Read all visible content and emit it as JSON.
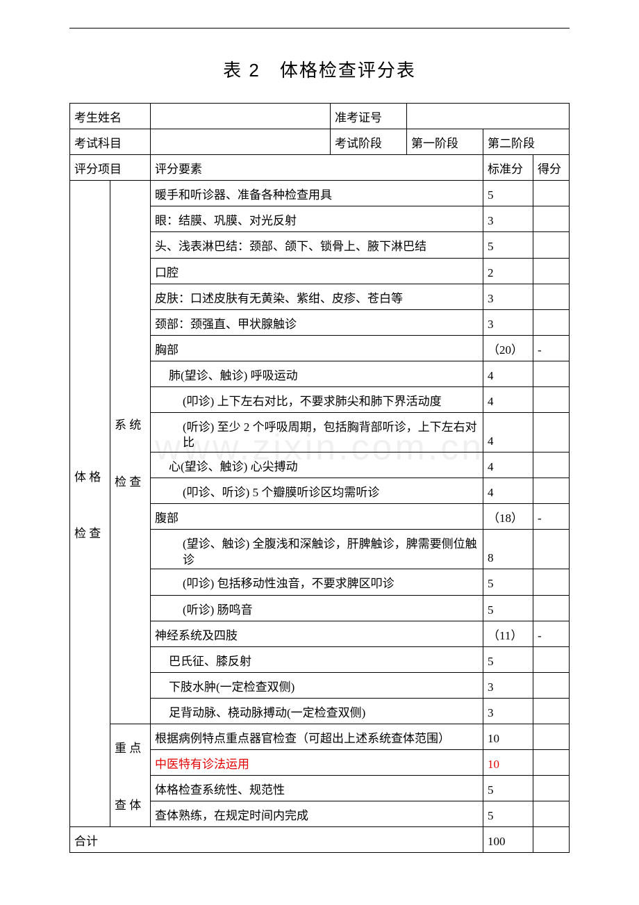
{
  "page": {
    "title": "表 2　体格检查评分表",
    "watermark": "www.zixin.com.cn"
  },
  "header": {
    "name_label": "考生姓名",
    "name_value": "",
    "admit_label": "准考证号",
    "admit_value": "",
    "subject_label": "考试科目",
    "subject_value": "",
    "stage_label": "考试阶段",
    "stage1": "第一阶段",
    "stage2": "第二阶段",
    "col_project": "评分项目",
    "col_elements": "评分要素",
    "col_standard": "标准分",
    "col_score": "得分"
  },
  "body": {
    "project_label": "体 格\n检 查",
    "section1_label": "系 统\n检 查",
    "section2_label": "重 点\n查 体",
    "rows1": [
      {
        "text": "暖手和听诊器、准备各种检查用具",
        "std": "5",
        "score": "",
        "indent": 0
      },
      {
        "text": "眼：结膜、巩膜、对光反射",
        "std": "3",
        "score": "",
        "indent": 0
      },
      {
        "text": "头、浅表淋巴结：颈部、颌下、锁骨上、腋下淋巴结",
        "std": "5",
        "score": "",
        "indent": 0
      },
      {
        "text": "口腔",
        "std": "2",
        "score": "",
        "indent": 0
      },
      {
        "text": "皮肤：口述皮肤有无黄染、紫绀、皮疹、苍白等",
        "std": "3",
        "score": "",
        "indent": 0
      },
      {
        "text": "颈部：颈强直、甲状腺触诊",
        "std": "3",
        "score": "",
        "indent": 0
      },
      {
        "text": "胸部",
        "std": "（20）",
        "score": "-",
        "indent": 0
      },
      {
        "text": "肺(望诊、触诊) 呼吸运动",
        "std": "4",
        "score": "",
        "indent": 1
      },
      {
        "text": "(叩诊) 上下左右对比，不要求肺尖和肺下界活动度",
        "std": "4",
        "score": "",
        "indent": 2
      },
      {
        "text": "(听诊) 至少 2 个呼吸周期，包括胸背部听诊，上下左右对比",
        "std": "4",
        "score": "",
        "indent": 2,
        "twoline": true
      },
      {
        "text": "心(望诊、触诊) 心尖搏动",
        "std": "4",
        "score": "",
        "indent": 1
      },
      {
        "text": "(叩诊、听诊) 5 个瓣膜听诊区均需听诊",
        "std": "4",
        "score": "",
        "indent": 2
      },
      {
        "text": "腹部",
        "std": "（18）",
        "score": "-",
        "indent": 0
      },
      {
        "text": "(望诊、触诊) 全腹浅和深触诊，肝脾触诊，脾需要侧位触诊",
        "std": "8",
        "score": "",
        "indent": 2,
        "twoline": true
      },
      {
        "text": "(叩诊) 包括移动性浊音，不要求脾区叩诊",
        "std": "5",
        "score": "",
        "indent": 2
      },
      {
        "text": "(听诊) 肠鸣音",
        "std": "5",
        "score": "",
        "indent": 2
      },
      {
        "text": "神经系统及四肢",
        "std": "（11）",
        "score": "-",
        "indent": 0
      },
      {
        "text": "巴氏征、膝反射",
        "std": "5",
        "score": "",
        "indent": 1
      },
      {
        "text": "下肢水肿(一定检查双侧)",
        "std": "3",
        "score": "",
        "indent": 1
      },
      {
        "text": "足背动脉、桡动脉搏动(一定检查双侧)",
        "std": "3",
        "score": "",
        "indent": 1
      }
    ],
    "rows2": [
      {
        "text": "根据病例特点重点器官检查（可超出上述系统查体范围）",
        "std": "10",
        "score": "",
        "indent": 0
      },
      {
        "text": "中医特有诊法运用",
        "std": "10",
        "score": "",
        "indent": 0,
        "red": true
      },
      {
        "text": "体格检查系统性、规范性",
        "std": "5",
        "score": "",
        "indent": 0
      },
      {
        "text": "查体熟练，在规定时间内完成",
        "std": "5",
        "score": "",
        "indent": 0
      }
    ]
  },
  "footer": {
    "total_label": "合计",
    "total_std": "100",
    "total_score": ""
  },
  "style": {
    "text_color": "#000000",
    "red_color": "#e30000",
    "border_color": "#000000",
    "background": "#ffffff",
    "title_fontsize": 26,
    "cell_fontsize": 17,
    "columns": {
      "project_w": 58,
      "sub_w": 58,
      "std_w": 72,
      "score_w": 52
    }
  }
}
